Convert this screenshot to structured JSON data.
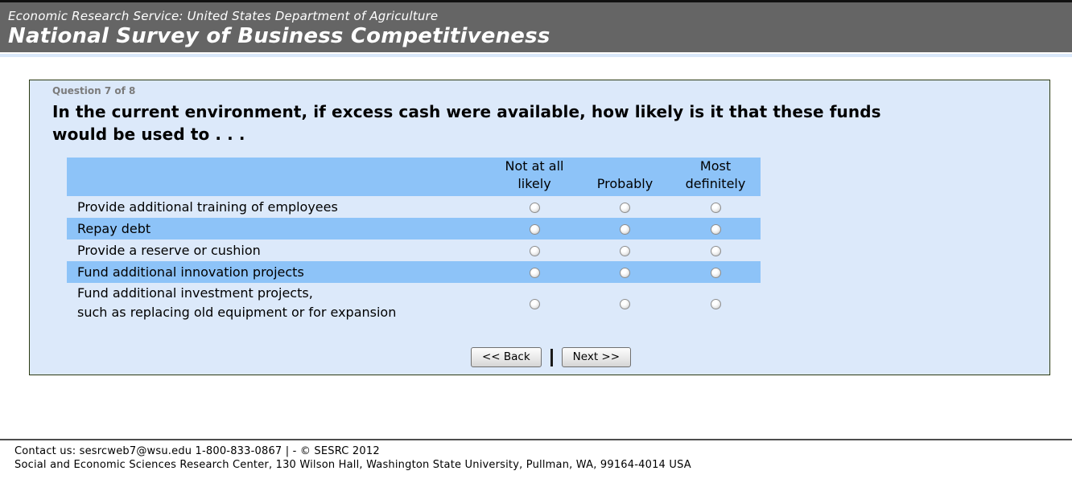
{
  "header": {
    "agency": "Economic Research Service: United States Department of Agriculture",
    "title": "National Survey of Business Competitiveness"
  },
  "question": {
    "progress": "Question 7 of 8",
    "text": "In the current environment, if excess cash were available, how likely is it that these funds\nwould be used to . . ."
  },
  "table": {
    "columns": [
      "Not at all\nlikely",
      "Probably",
      "Most\ndefinitely"
    ],
    "rows": [
      {
        "label": "Provide additional training of employees",
        "highlighted": false,
        "selected": null
      },
      {
        "label": "Repay debt",
        "highlighted": true,
        "selected": null
      },
      {
        "label": "Provide a reserve or cushion",
        "highlighted": false,
        "selected": null
      },
      {
        "label": "Fund additional innovation projects",
        "highlighted": true,
        "selected": null
      },
      {
        "label": "Fund additional investment projects,\nsuch as replacing old equipment or for expansion",
        "highlighted": false,
        "selected": null
      }
    ]
  },
  "buttons": {
    "back": "<< Back",
    "next": "Next >>"
  },
  "footer": {
    "line1": "Contact us: sesrcweb7@wsu.edu 1-800-833-0867 | - © SESRC 2012",
    "line2": "Social and Economic Sciences Research Center, 130 Wilson Hall, Washington State University, Pullman, WA, 99164-4014 USA"
  },
  "colors": {
    "banner_background": "#656565",
    "panel_background": "#DCE9FA",
    "panel_border": "#2C3A12",
    "highlight_blue": "#8DC3F8",
    "footer_rule": "#4D4D4D"
  }
}
